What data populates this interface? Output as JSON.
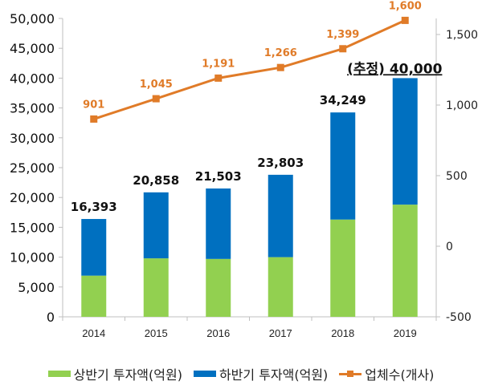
{
  "chart_data": {
    "type": "bar",
    "subtype": "stacked-bar-with-line-secondary-axis",
    "title": "",
    "categories": [
      "2014",
      "2015",
      "2016",
      "2017",
      "2018",
      "2019"
    ],
    "series": [
      {
        "name": "상반기 투자액(억원)",
        "type": "bar",
        "axis": "left",
        "color": "#92D050",
        "values": [
          6900,
          9800,
          9700,
          10000,
          16300,
          18800
        ]
      },
      {
        "name": "하반기 투자액(억원)",
        "type": "bar",
        "axis": "left",
        "color": "#0070C0",
        "values": [
          9493,
          11058,
          11803,
          13803,
          17949,
          21200
        ]
      },
      {
        "name": "업체수(개사)",
        "type": "line",
        "axis": "right",
        "color": "#E07B28",
        "values": [
          901,
          1045,
          1191,
          1266,
          1399,
          1600
        ]
      }
    ],
    "bar_totals": [
      16393,
      20858,
      21503,
      23803,
      34249,
      40000
    ],
    "bar_total_labels": [
      "16,393",
      "20,858",
      "21,503",
      "23,803",
      "34,249",
      "(추정) 40,000"
    ],
    "line_labels": [
      "901",
      "1,045",
      "1,191",
      "1,266",
      "1,399",
      "1,600"
    ],
    "estimate_note": "(추정)",
    "left_axis": {
      "label": "",
      "ylim": [
        0,
        50000
      ],
      "ticks": [
        0,
        5000,
        10000,
        15000,
        20000,
        25000,
        30000,
        35000,
        40000,
        45000,
        50000
      ],
      "tick_labels": [
        "0",
        "5,000",
        "10,000",
        "15,000",
        "20,000",
        "25,000",
        "30,000",
        "35,000",
        "40,000",
        "45,000",
        "50,000"
      ]
    },
    "right_axis": {
      "label": "",
      "ylim": [
        -500,
        1600
      ],
      "ticks": [
        -500,
        0,
        500,
        1000,
        1500
      ],
      "tick_labels": [
        "-500",
        "0",
        "500",
        "1,000",
        "1,500"
      ]
    },
    "xlabel": "",
    "grid": false,
    "legend_position": "bottom"
  },
  "legend": {
    "items": [
      {
        "label": "상반기 투자액(억원)",
        "color": "#92D050",
        "kind": "bar"
      },
      {
        "label": "하반기 투자액(억원)",
        "color": "#0070C0",
        "kind": "bar"
      },
      {
        "label": "업체수(개사)",
        "color": "#E07B28",
        "kind": "line"
      }
    ]
  }
}
